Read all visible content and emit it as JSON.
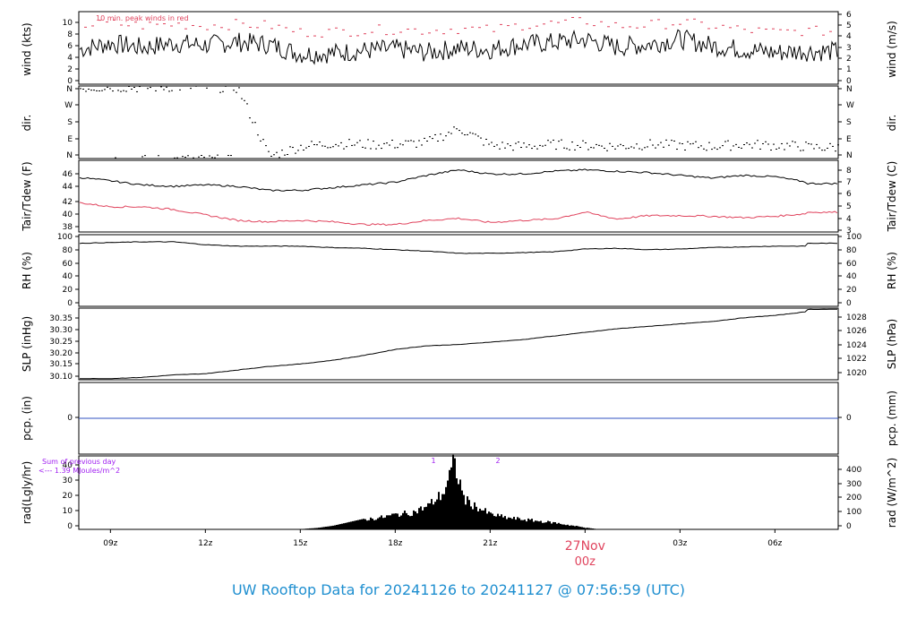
{
  "footer": {
    "title": "UW Rooftop Data for 20241126  to  20241127 @ 07:56:59  (UTC)",
    "color": "#1f8fd0"
  },
  "colors": {
    "line": "#000000",
    "red": "#e0435d",
    "blue": "#3050c0",
    "purple": "#a020f0",
    "date_label": "#e0435d"
  },
  "chart_data": {
    "type": "line",
    "time_axis": {
      "ticks": [
        "09z",
        "12z",
        "15z",
        "18z",
        "21z",
        "00z",
        "03z",
        "06z"
      ],
      "date_label": "27Nov",
      "date_tick": "00z",
      "range": [
        "2024-11-26T08:00Z",
        "2024-11-27T08:00Z"
      ]
    },
    "panels": [
      {
        "id": "wind",
        "left_label": "wind (kts)",
        "right_label": "wind (m/s)",
        "left_ticks": [
          "0",
          "2",
          "4",
          "6",
          "8",
          "10"
        ],
        "right_ticks": [
          "0",
          "1",
          "2",
          "3",
          "4",
          "5",
          "6"
        ],
        "ylim": [
          0,
          11.5
        ],
        "annotation": "10 min. peak winds in red",
        "series": [
          {
            "name": "",
            "color": "#000000",
            "times": [
              "08:00",
              "09:00",
              "10:00",
              "11:00",
              "12:00",
              "13:00",
              "14:00",
              "15:00",
              "16:00",
              "17:00",
              "18:00",
              "19:00",
              "20:00",
              "21:00",
              "22:00",
              "23:00",
              "00:00",
              "01:00",
              "02:00",
              "03:00",
              "04:00",
              "05:00",
              "06:00",
              "07:00",
              "08:00"
            ],
            "values": [
              5.5,
              6.5,
              5.8,
              6.5,
              6.2,
              6.7,
              6.3,
              4.8,
              4.9,
              5.3,
              5.6,
              5.0,
              5.7,
              5.5,
              6.3,
              6.6,
              7.1,
              5.9,
              6.3,
              7.2,
              6.1,
              5.5,
              5.0,
              5.3,
              5.2
            ]
          },
          {
            "name": "",
            "color": "#e0435d",
            "times": [
              "08:00",
              "09:00",
              "10:00",
              "11:00",
              "12:00",
              "13:00",
              "14:00",
              "15:00",
              "16:00",
              "17:00",
              "18:00",
              "19:00",
              "20:00",
              "21:00",
              "22:00",
              "23:00",
              "00:00",
              "01:00",
              "02:00",
              "03:00",
              "04:00",
              "05:00",
              "06:00",
              "07:00",
              "08:00"
            ],
            "values": [
              9.3,
              9.6,
              9.3,
              9.5,
              9.3,
              9.5,
              9.3,
              8.2,
              8.3,
              8.5,
              8.7,
              8.5,
              8.8,
              8.6,
              9.4,
              9.6,
              10.0,
              9.2,
              9.4,
              9.8,
              9.2,
              8.6,
              8.2,
              8.5,
              8.4
            ]
          }
        ]
      },
      {
        "id": "dir",
        "left_label": "dir.",
        "right_label": "dir.",
        "left_ticks": [
          "N",
          "E",
          "S",
          "W",
          "N"
        ],
        "right_ticks": [
          "N",
          "E",
          "S",
          "W",
          "N"
        ],
        "ylim": [
          0,
          360
        ],
        "series": [
          {
            "name": "",
            "color": "#000000",
            "times": [
              "08:00",
              "09:00",
              "10:00",
              "11:00",
              "12:00",
              "13:00",
              "14:00",
              "15:00",
              "16:00",
              "17:00",
              "18:00",
              "19:00",
              "20:00",
              "21:00",
              "22:00",
              "23:00",
              "00:00",
              "01:00",
              "02:00",
              "03:00",
              "04:00",
              "05:00",
              "06:00",
              "07:00",
              "08:00"
            ],
            "values": [
              350,
              355,
              352,
              356,
              355,
              350,
              10,
              60,
              75,
              70,
              70,
              80,
              150,
              65,
              60,
              70,
              65,
              60,
              70,
              65,
              60,
              70,
              65,
              60,
              55
            ]
          }
        ]
      },
      {
        "id": "temp",
        "left_label": "Tair/Tdew (F)",
        "right_label": "Tair/Tdew (C)",
        "left_ticks": [
          "38",
          "40",
          "42",
          "44",
          "46"
        ],
        "right_ticks": [
          "3",
          "4",
          "5",
          "6",
          "7",
          "8"
        ],
        "ylim": [
          37.5,
          48
        ],
        "series": [
          {
            "name": "",
            "color": "#000000",
            "times": [
              "08:00",
              "09:00",
              "10:00",
              "11:00",
              "12:00",
              "13:00",
              "14:00",
              "15:00",
              "16:00",
              "17:00",
              "18:00",
              "19:00",
              "20:00",
              "21:00",
              "22:00",
              "23:00",
              "00:00",
              "01:00",
              "02:00",
              "03:00",
              "04:00",
              "05:00",
              "06:00",
              "07:00",
              "08:00"
            ],
            "values": [
              45.5,
              45.0,
              44.4,
              44.2,
              44.4,
              44.2,
              43.6,
              43.6,
              44.0,
              44.4,
              44.8,
              45.8,
              46.6,
              46.0,
              46.0,
              46.4,
              46.6,
              46.4,
              46.2,
              45.8,
              45.4,
              45.8,
              45.6,
              44.8,
              44.6
            ]
          },
          {
            "name": "",
            "color": "#e0435d",
            "times": [
              "08:00",
              "09:00",
              "10:00",
              "11:00",
              "12:00",
              "13:00",
              "14:00",
              "15:00",
              "16:00",
              "17:00",
              "18:00",
              "19:00",
              "20:00",
              "21:00",
              "22:00",
              "23:00",
              "00:00",
              "01:00",
              "02:00",
              "03:00",
              "04:00",
              "05:00",
              "06:00",
              "07:00",
              "08:00"
            ],
            "values": [
              41.8,
              41.2,
              41.2,
              40.8,
              40.0,
              39.2,
              39.0,
              39.2,
              39.0,
              38.6,
              38.6,
              39.2,
              39.5,
              38.9,
              39.2,
              39.4,
              40.4,
              39.4,
              39.9,
              39.9,
              39.8,
              39.6,
              39.8,
              40.2,
              40.4
            ]
          }
        ]
      },
      {
        "id": "rh",
        "left_label": "RH (%)",
        "right_label": "RH (%)",
        "left_ticks": [
          "0",
          "20",
          "40",
          "60",
          "80",
          "100"
        ],
        "right_ticks": [
          "0",
          "20",
          "40",
          "60",
          "80",
          "100"
        ],
        "ylim": [
          0,
          100
        ],
        "series": [
          {
            "name": "",
            "color": "#000000",
            "times": [
              "08:00",
              "09:00",
              "10:00",
              "11:00",
              "12:00",
              "13:00",
              "14:00",
              "15:00",
              "16:00",
              "17:00",
              "18:00",
              "19:00",
              "20:00",
              "21:00",
              "22:00",
              "23:00",
              "00:00",
              "01:00",
              "02:00",
              "03:00",
              "04:00",
              "05:00",
              "06:00",
              "07:00",
              "08:00"
            ],
            "values": [
              88,
              89,
              90,
              90,
              86,
              84,
              84,
              84,
              82,
              81,
              79,
              77,
              74,
              74,
              75,
              76,
              80,
              81,
              79,
              80,
              82,
              83,
              84,
              84,
              88
            ]
          }
        ]
      },
      {
        "id": "slp",
        "left_label": "SLP (inHg)",
        "right_label": "SLP (hPa)",
        "left_ticks": [
          "30.10",
          "30.15",
          "30.20",
          "30.25",
          "30.30",
          "30.35"
        ],
        "right_ticks": [
          "1020",
          "1022",
          "1024",
          "1026",
          "1028"
        ],
        "ylim": [
          30.095,
          30.39
        ],
        "series": [
          {
            "name": "",
            "color": "#000000",
            "times": [
              "08:00",
              "09:00",
              "10:00",
              "11:00",
              "12:00",
              "13:00",
              "14:00",
              "15:00",
              "16:00",
              "17:00",
              "18:00",
              "19:00",
              "20:00",
              "21:00",
              "22:00",
              "23:00",
              "00:00",
              "01:00",
              "02:00",
              "03:00",
              "04:00",
              "05:00",
              "06:00",
              "07:00",
              "08:00"
            ],
            "values": [
              30.1,
              30.1,
              30.105,
              30.115,
              30.12,
              30.135,
              30.15,
              30.16,
              30.175,
              30.195,
              30.22,
              30.235,
              30.24,
              30.25,
              30.26,
              30.275,
              30.29,
              30.305,
              30.315,
              30.325,
              30.335,
              30.35,
              30.36,
              30.375,
              30.385
            ]
          }
        ]
      },
      {
        "id": "pcp",
        "left_label": "pcp. (in)",
        "right_label": "pcp. (mm)",
        "left_ticks": [
          "0"
        ],
        "right_ticks": [
          "0"
        ],
        "ylim": [
          -1,
          1
        ],
        "series": [
          {
            "name": "",
            "color": "#3050c0",
            "times": [
              "08:00",
              "08:00"
            ],
            "values": [
              0,
              0
            ]
          }
        ]
      },
      {
        "id": "rad",
        "left_label": "rad(Lgly/hr)",
        "right_label": "rad (W/m^2)",
        "left_ticks": [
          "0",
          "10",
          "20",
          "30",
          "40"
        ],
        "right_ticks": [
          "0",
          "100",
          "200",
          "300",
          "400"
        ],
        "ylim": [
          0,
          41
        ],
        "annotations": [
          "Sum of previous day",
          "<--- 1.39 MJoules/m^2",
          "1",
          "2"
        ],
        "series": [
          {
            "name": "",
            "color": "#000000",
            "times": [
              "15:00",
              "15:30",
              "16:00",
              "16:30",
              "17:00",
              "17:30",
              "18:00",
              "18:30",
              "19:00",
              "19:30",
              "19:50",
              "20:10",
              "20:30",
              "21:00",
              "21:30",
              "22:00",
              "22:30",
              "23:00",
              "23:30",
              "00:00",
              "00:20"
            ],
            "values": [
              0.2,
              0.8,
              2,
              4,
              6,
              7,
              9,
              10,
              14,
              22,
              40,
              18,
              14,
              9,
              7,
              6,
              5,
              4,
              2.5,
              1,
              0.2
            ]
          }
        ]
      }
    ]
  }
}
